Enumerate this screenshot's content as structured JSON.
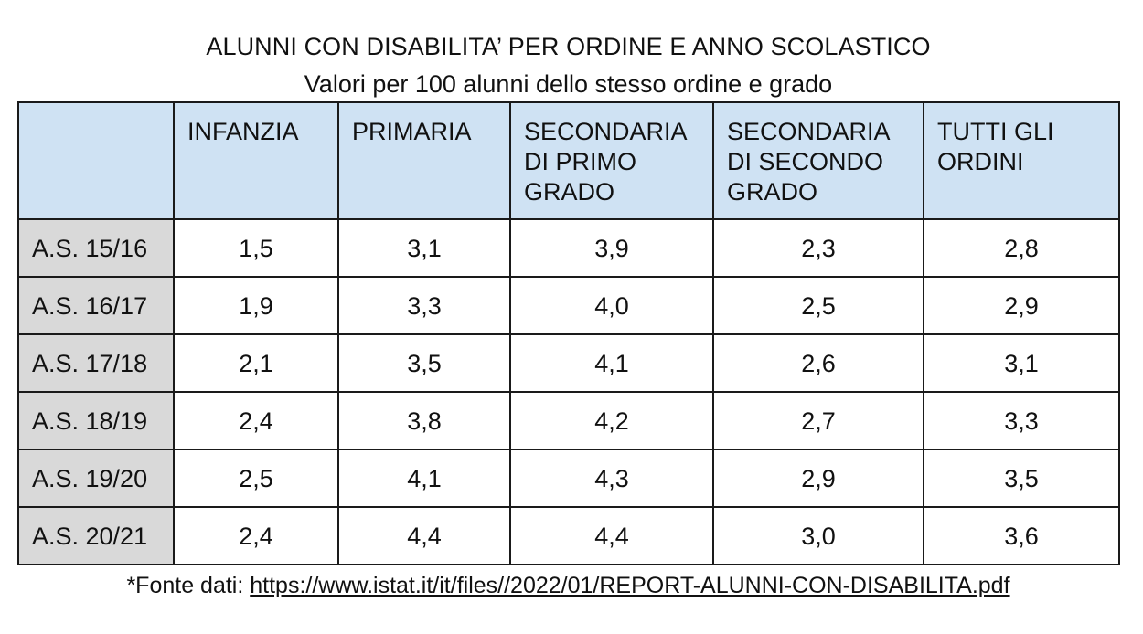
{
  "title": "ALUNNI CON DISABILITA’ PER ORDINE E ANNO SCOLASTICO",
  "subtitle": "Valori per 100 alunni dello stesso ordine e grado",
  "table": {
    "corner": "",
    "columns": [
      "INFANZIA",
      "PRIMARIA",
      "SECONDARIA DI PRIMO GRADO",
      "SECONDARIA DI SECONDO GRADO",
      "TUTTI GLI ORDINI"
    ],
    "rows": [
      {
        "label": "A.S. 15/16",
        "values": [
          "1,5",
          "3,1",
          "3,9",
          "2,3",
          "2,8"
        ]
      },
      {
        "label": "A.S. 16/17",
        "values": [
          "1,9",
          "3,3",
          "4,0",
          "2,5",
          "2,9"
        ]
      },
      {
        "label": "A.S. 17/18",
        "values": [
          "2,1",
          "3,5",
          "4,1",
          "2,6",
          "3,1"
        ]
      },
      {
        "label": "A.S. 18/19",
        "values": [
          "2,4",
          "3,8",
          "4,2",
          "2,7",
          "3,3"
        ]
      },
      {
        "label": "A.S. 19/20",
        "values": [
          "2,5",
          "4,1",
          "4,3",
          "2,9",
          "3,5"
        ]
      },
      {
        "label": "A.S. 20/21",
        "values": [
          "2,4",
          "4,4",
          "4,4",
          "3,0",
          "3,6"
        ]
      }
    ]
  },
  "source": {
    "prefix": "*Fonte dati: ",
    "link_text": "https://www.istat.it/it/files//2022/01/REPORT-ALUNNI-CON-DISABILITA.pdf"
  },
  "colors": {
    "header_background": "#cfe2f3",
    "row_label_background": "#d9d9d9",
    "border": "#1a1a1a"
  }
}
